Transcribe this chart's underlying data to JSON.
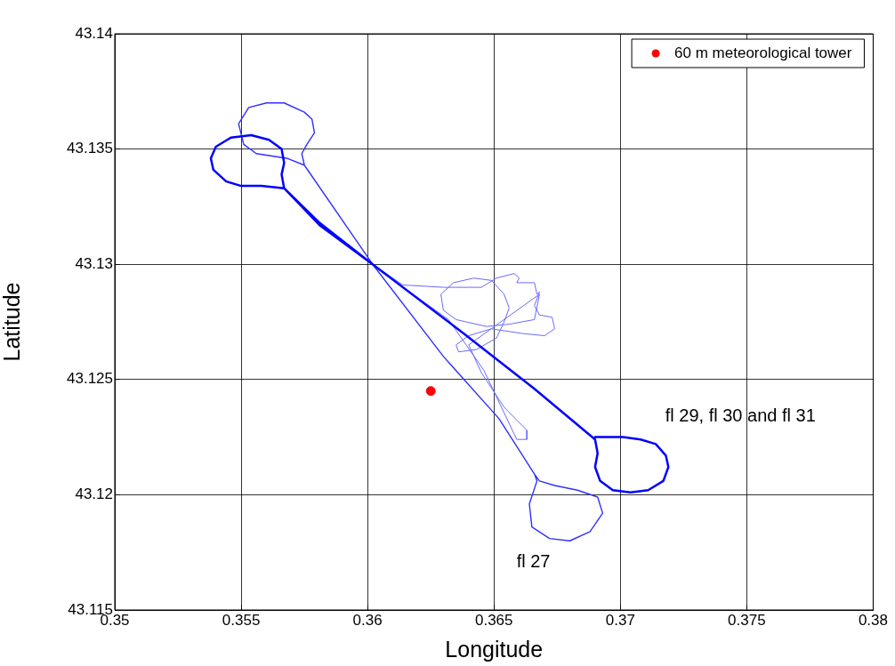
{
  "chart_data": {
    "type": "line",
    "xlabel": "Longitude",
    "ylabel": "Latitude",
    "xlim": [
      0.35,
      0.38
    ],
    "xticks": [
      0.35,
      0.355,
      0.36,
      0.365,
      0.37,
      0.375,
      0.38
    ],
    "ylim": [
      43.115,
      43.14
    ],
    "yticks": [
      43.115,
      43.12,
      43.125,
      43.13,
      43.135,
      43.14
    ],
    "grid": true,
    "legend": "top right",
    "series": [
      {
        "type": "line",
        "color": "#0000ff",
        "marker": "none",
        "x": [
          0.369,
          0.3694,
          0.3701,
          0.3708,
          0.3714,
          0.3718,
          0.3719,
          0.3717,
          0.3711,
          0.3704,
          0.3697,
          0.3692,
          0.369,
          0.3691,
          0.369,
          0.3666,
          0.3638,
          0.3602,
          0.3581,
          0.3567,
          0.3558,
          0.355,
          0.3544,
          0.3539,
          0.3538,
          0.354,
          0.3546,
          0.3554,
          0.3561,
          0.3566,
          0.3567,
          0.3566,
          0.3567,
          0.3581,
          0.3602,
          0.3638,
          0.3666
        ],
        "values": [
          43.1225,
          43.1225,
          43.1225,
          43.1224,
          43.1222,
          43.1217,
          43.1212,
          43.1206,
          43.1202,
          43.1201,
          43.1202,
          43.1206,
          43.1212,
          43.1218,
          43.1224,
          43.1246,
          43.127,
          43.13,
          43.1318,
          43.1333,
          43.1334,
          43.1334,
          43.1336,
          43.1341,
          43.1346,
          43.1351,
          43.1355,
          43.1356,
          43.1354,
          43.135,
          43.1344,
          43.1339,
          43.1333,
          43.1317,
          43.13,
          43.127,
          43.1246
        ]
      },
      {
        "type": "line",
        "color": "#3030ff",
        "marker": "none",
        "x": [
          0.3602,
          0.363,
          0.3652,
          0.3666,
          0.3667,
          0.3664,
          0.3665,
          0.3672,
          0.368,
          0.3688,
          0.3693,
          0.3691,
          0.3683,
          0.3674,
          0.3668,
          0.3666,
          0.3652,
          0.363,
          0.3602,
          0.3575,
          0.3574,
          0.3576,
          0.3579,
          0.3578,
          0.3575,
          0.3567,
          0.356,
          0.3553,
          0.3549,
          0.3551,
          0.3556,
          0.3568,
          0.3575
        ],
        "values": [
          43.13,
          43.126,
          43.1233,
          43.1209,
          43.1206,
          43.1196,
          43.1186,
          43.1181,
          43.118,
          43.1184,
          43.1192,
          43.1199,
          43.1202,
          43.1204,
          43.1206,
          43.1209,
          43.1233,
          43.126,
          43.13,
          43.1343,
          43.1348,
          43.1352,
          43.1357,
          43.1363,
          43.1366,
          43.137,
          43.137,
          43.1368,
          43.1361,
          43.1352,
          43.1348,
          43.1346,
          43.1343
        ]
      },
      {
        "type": "line",
        "color": "#6a6aff",
        "marker": "none",
        "x": [
          0.3602,
          0.3614,
          0.363,
          0.3645,
          0.3651,
          0.3658,
          0.366,
          0.3659,
          0.3666,
          0.3667,
          0.3668,
          0.3666,
          0.3668,
          0.3673,
          0.3674,
          0.367,
          0.3661,
          0.3649,
          0.364,
          0.3635,
          0.3636,
          0.3643,
          0.3651,
          0.3654,
          0.3656,
          0.3654,
          0.3649,
          0.3642,
          0.3634,
          0.3629,
          0.363,
          0.3635,
          0.3647,
          0.3656,
          0.3666,
          0.3668,
          0.364,
          0.3645,
          0.3654,
          0.3663,
          0.3663,
          0.3659,
          0.3646,
          0.3632,
          0.3604
        ],
        "values": [
          43.13,
          43.1291,
          43.129,
          43.129,
          43.1294,
          43.1296,
          43.1294,
          43.1292,
          43.1292,
          43.1287,
          43.1288,
          43.1282,
          43.1278,
          43.1277,
          43.1272,
          43.1269,
          43.127,
          43.1272,
          43.1269,
          43.1265,
          43.1262,
          43.1263,
          43.1268,
          43.1275,
          43.1281,
          43.1287,
          43.1293,
          43.1294,
          43.1292,
          43.1287,
          43.128,
          43.1276,
          43.1273,
          43.1274,
          43.1276,
          43.1287,
          43.1265,
          43.1253,
          43.1238,
          43.1228,
          43.1224,
          43.1224,
          43.1254,
          43.1276,
          43.1298
        ]
      },
      {
        "type": "scatter",
        "name": "60 m meteorological tower",
        "color": "#ff0000",
        "marker": "circle",
        "x": [
          0.3625
        ],
        "values": [
          43.1245
        ]
      }
    ],
    "annotations": [
      "fl 27",
      "fl 29, fl 30 and fl 31"
    ]
  }
}
